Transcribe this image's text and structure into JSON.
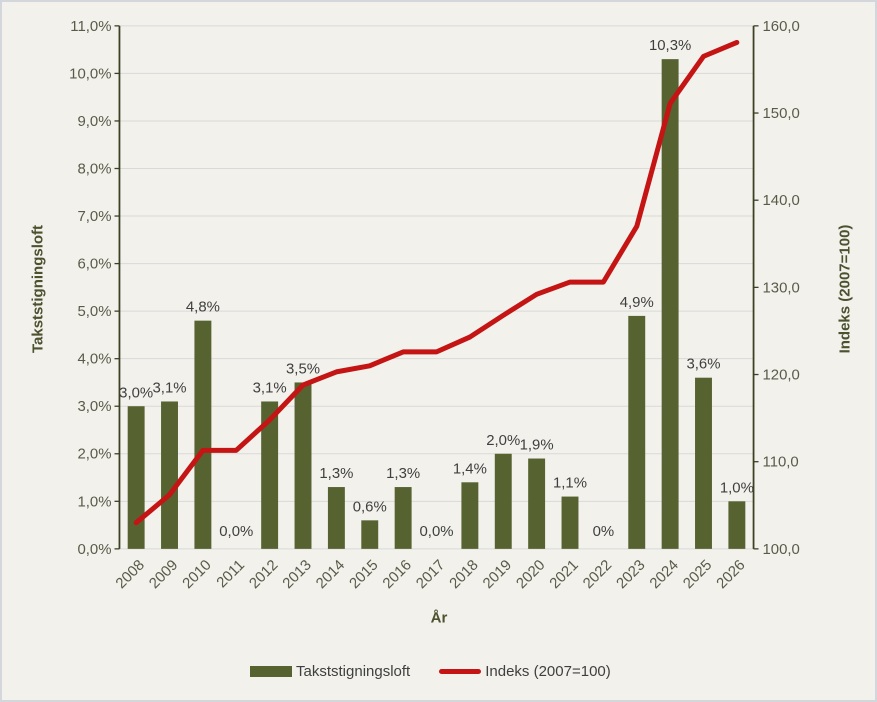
{
  "colors": {
    "background": "#f2f1ec",
    "frame_border": "#d3d6da",
    "bar": "#566230",
    "line": "#c41414",
    "grid": "#d9d9d9",
    "axis": "#3c4124",
    "tick_text": "#5a5a49",
    "title_text": "#4c512e",
    "data_label_text": "#3f3f3f",
    "legend_text": "#3f3f3f"
  },
  "chart_data": {
    "type": "bar+line combo",
    "grid": "horizontal only",
    "legend_position": "bottom",
    "categories": [
      "2008",
      "2009",
      "2010",
      "2011",
      "2012",
      "2013",
      "2014",
      "2015",
      "2016",
      "2017",
      "2018",
      "2019",
      "2020",
      "2021",
      "2022",
      "2023",
      "2024",
      "2025",
      "2026"
    ],
    "series": [
      {
        "name": "Takststigningsloft",
        "type": "bar",
        "axis": "left",
        "values": [
          3.0,
          3.1,
          4.8,
          0.0,
          3.1,
          3.5,
          1.3,
          0.6,
          1.3,
          0.0,
          1.4,
          2.0,
          1.9,
          1.1,
          0.0,
          4.9,
          10.3,
          3.6,
          1.0
        ],
        "data_labels": [
          "3,0%",
          "3,1%",
          "4,8%",
          "0,0%",
          "3,1%",
          "3,5%",
          "1,3%",
          "0,6%",
          "1,3%",
          "0,0%",
          "1,4%",
          "2,0%",
          "1,9%",
          "1,1%",
          "0%",
          "4,9%",
          "10,3%",
          "3,6%",
          "1,0%"
        ]
      },
      {
        "name": "Indeks (2007=100)",
        "type": "line",
        "axis": "right",
        "values": [
          103.0,
          106.2,
          111.3,
          111.3,
          114.8,
          118.8,
          120.3,
          121.0,
          122.6,
          122.6,
          124.3,
          126.8,
          129.2,
          130.6,
          130.6,
          137.0,
          151.1,
          156.5,
          158.1
        ]
      }
    ],
    "x_axis": {
      "title": "År"
    },
    "left_axis": {
      "title": "Takststigningsloft",
      "min": 0,
      "max": 11,
      "tick_values": [
        11,
        10,
        9,
        8,
        7,
        6,
        5,
        4,
        3,
        2,
        1,
        0
      ],
      "tick_labels": [
        "11,0%",
        "10,0%",
        "9,0%",
        "8,0%",
        "7,0%",
        "6,0%",
        "5,0%",
        "4,0%",
        "3,0%",
        "2,0%",
        "1,0%",
        "0,0%"
      ]
    },
    "right_axis": {
      "title": "Indeks (2007=100)",
      "min": 100,
      "max": 160,
      "tick_values": [
        160,
        150,
        140,
        130,
        120,
        110,
        100
      ],
      "tick_labels": [
        "160,0",
        "150,0",
        "140,0",
        "130,0",
        "120,0",
        "110,0",
        "100,0"
      ]
    },
    "legend": {
      "items": [
        {
          "label": "Takststigningsloft",
          "swatch": "bar"
        },
        {
          "label": "Indeks (2007=100)",
          "swatch": "line"
        }
      ]
    }
  }
}
